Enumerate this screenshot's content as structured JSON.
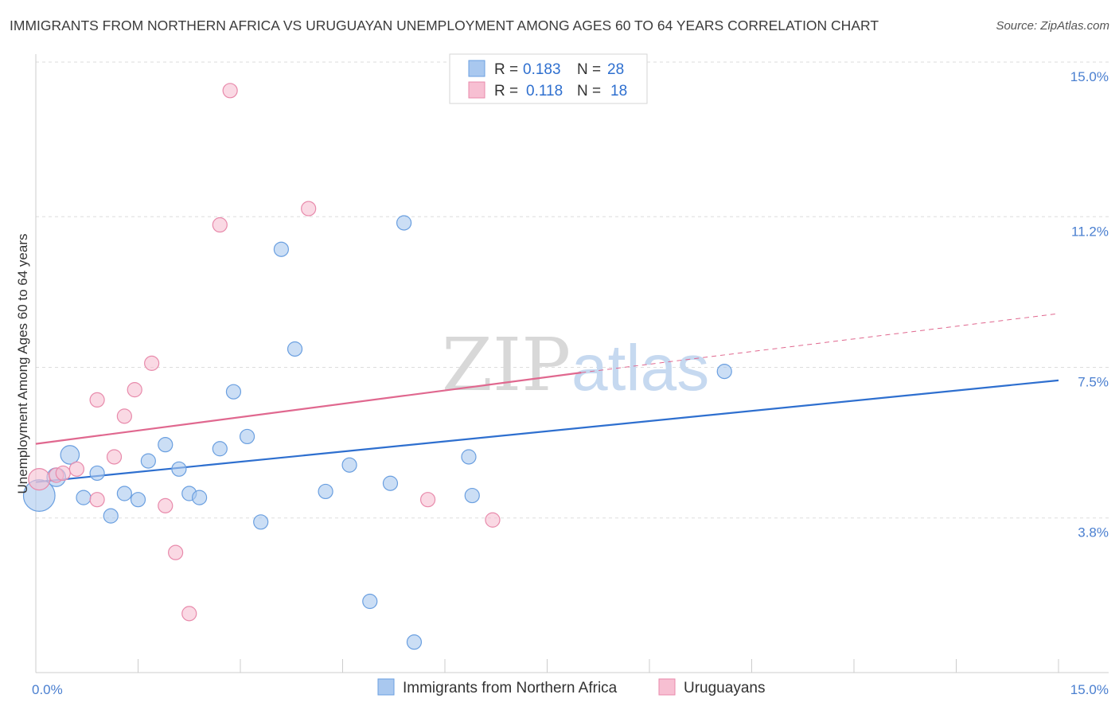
{
  "header": {
    "title": "IMMIGRANTS FROM NORTHERN AFRICA VS URUGUAYAN UNEMPLOYMENT AMONG AGES 60 TO 64 YEARS CORRELATION CHART",
    "source": "Source: ZipAtlas.com"
  },
  "watermark": {
    "part1": "ZIP",
    "part2": "atlas"
  },
  "colors": {
    "blue_fill": "#a9c8ef",
    "blue_stroke": "#6a9fe0",
    "blue_line": "#2e6fcf",
    "pink_fill": "#f7bfd2",
    "pink_stroke": "#e88aab",
    "pink_line": "#e0688f",
    "axis_text": "#4a7fd0",
    "grid": "#dddddd"
  },
  "legend": {
    "rows": [
      {
        "r_label": "R = ",
        "r_value": "0.183",
        "n_label": "N = ",
        "n_value": "28"
      },
      {
        "r_label": "R = ",
        "r_value": "0.118",
        "n_label": "N = ",
        "n_value": "18"
      }
    ]
  },
  "chart_data": {
    "type": "scatter",
    "title": "IMMIGRANTS FROM NORTHERN AFRICA VS URUGUAYAN UNEMPLOYMENT AMONG AGES 60 TO 64 YEARS CORRELATION CHART",
    "xlabel": "",
    "ylabel": "Unemployment Among Ages 60 to 64 years",
    "xlim": [
      0,
      15
    ],
    "ylim": [
      0,
      15
    ],
    "x_tick_labels": [
      "0.0%",
      "15.0%"
    ],
    "y_ticks": [
      3.8,
      7.5,
      11.2,
      15.0
    ],
    "y_tick_labels": [
      "3.8%",
      "7.5%",
      "11.2%",
      "15.0%"
    ],
    "series": [
      {
        "name": "Immigrants from Northern Africa",
        "color": "#a9c8ef",
        "r": "0.183",
        "n": "28",
        "points": [
          {
            "x": 0.05,
            "y": 4.35,
            "s": 2.2
          },
          {
            "x": 0.3,
            "y": 4.8,
            "s": 1.3
          },
          {
            "x": 0.5,
            "y": 5.35,
            "s": 1.3
          },
          {
            "x": 0.9,
            "y": 4.9,
            "s": 1.0
          },
          {
            "x": 0.7,
            "y": 4.3,
            "s": 1.0
          },
          {
            "x": 1.1,
            "y": 3.85,
            "s": 1.0
          },
          {
            "x": 1.3,
            "y": 4.4,
            "s": 1.0
          },
          {
            "x": 1.5,
            "y": 4.25,
            "s": 1.0
          },
          {
            "x": 1.65,
            "y": 5.2,
            "s": 1.0
          },
          {
            "x": 1.9,
            "y": 5.6,
            "s": 1.0
          },
          {
            "x": 2.1,
            "y": 5.0,
            "s": 1.0
          },
          {
            "x": 2.25,
            "y": 4.4,
            "s": 1.0
          },
          {
            "x": 2.4,
            "y": 4.3,
            "s": 1.0
          },
          {
            "x": 2.7,
            "y": 5.5,
            "s": 1.0
          },
          {
            "x": 2.9,
            "y": 6.9,
            "s": 1.0
          },
          {
            "x": 3.1,
            "y": 5.8,
            "s": 1.0
          },
          {
            "x": 3.3,
            "y": 3.7,
            "s": 1.0
          },
          {
            "x": 3.6,
            "y": 10.4,
            "s": 1.0
          },
          {
            "x": 3.8,
            "y": 7.95,
            "s": 1.0
          },
          {
            "x": 4.25,
            "y": 4.45,
            "s": 1.0
          },
          {
            "x": 4.6,
            "y": 5.1,
            "s": 1.0
          },
          {
            "x": 4.9,
            "y": 1.75,
            "s": 1.0
          },
          {
            "x": 5.2,
            "y": 4.65,
            "s": 1.0
          },
          {
            "x": 5.4,
            "y": 11.05,
            "s": 1.0
          },
          {
            "x": 5.55,
            "y": 0.75,
            "s": 1.0
          },
          {
            "x": 6.35,
            "y": 5.3,
            "s": 1.0
          },
          {
            "x": 6.4,
            "y": 4.35,
            "s": 1.0
          },
          {
            "x": 10.1,
            "y": 7.4,
            "s": 1.0
          }
        ],
        "trend": {
          "x": [
            0,
            15
          ],
          "y": [
            4.68,
            7.18
          ]
        }
      },
      {
        "name": "Uruguayans",
        "color": "#f7bfd2",
        "r": "0.118",
        "n": "18",
        "points": [
          {
            "x": 0.05,
            "y": 4.75,
            "s": 1.5
          },
          {
            "x": 0.3,
            "y": 4.85,
            "s": 1.0
          },
          {
            "x": 0.4,
            "y": 4.9,
            "s": 1.0
          },
          {
            "x": 0.6,
            "y": 5.0,
            "s": 1.0
          },
          {
            "x": 0.9,
            "y": 4.25,
            "s": 1.0
          },
          {
            "x": 0.9,
            "y": 6.7,
            "s": 1.0
          },
          {
            "x": 1.15,
            "y": 5.3,
            "s": 1.0
          },
          {
            "x": 1.3,
            "y": 6.3,
            "s": 1.0
          },
          {
            "x": 1.45,
            "y": 6.95,
            "s": 1.0
          },
          {
            "x": 1.7,
            "y": 7.6,
            "s": 1.0
          },
          {
            "x": 1.9,
            "y": 4.1,
            "s": 1.0
          },
          {
            "x": 2.05,
            "y": 2.95,
            "s": 1.0
          },
          {
            "x": 2.25,
            "y": 1.45,
            "s": 1.0
          },
          {
            "x": 2.7,
            "y": 11.0,
            "s": 1.0
          },
          {
            "x": 2.85,
            "y": 14.3,
            "s": 1.0
          },
          {
            "x": 4.0,
            "y": 11.4,
            "s": 1.0
          },
          {
            "x": 5.75,
            "y": 4.25,
            "s": 1.0
          },
          {
            "x": 6.7,
            "y": 3.75,
            "s": 1.0
          }
        ],
        "trend": {
          "x": [
            0,
            8.0
          ],
          "y": [
            5.62,
            7.37
          ]
        },
        "trend_dashed": {
          "x": [
            8.0,
            15
          ],
          "y": [
            7.37,
            8.82
          ]
        }
      }
    ]
  },
  "bottom_legend": {
    "items": [
      {
        "label": "Immigrants from Northern Africa"
      },
      {
        "label": "Uruguayans"
      }
    ]
  }
}
